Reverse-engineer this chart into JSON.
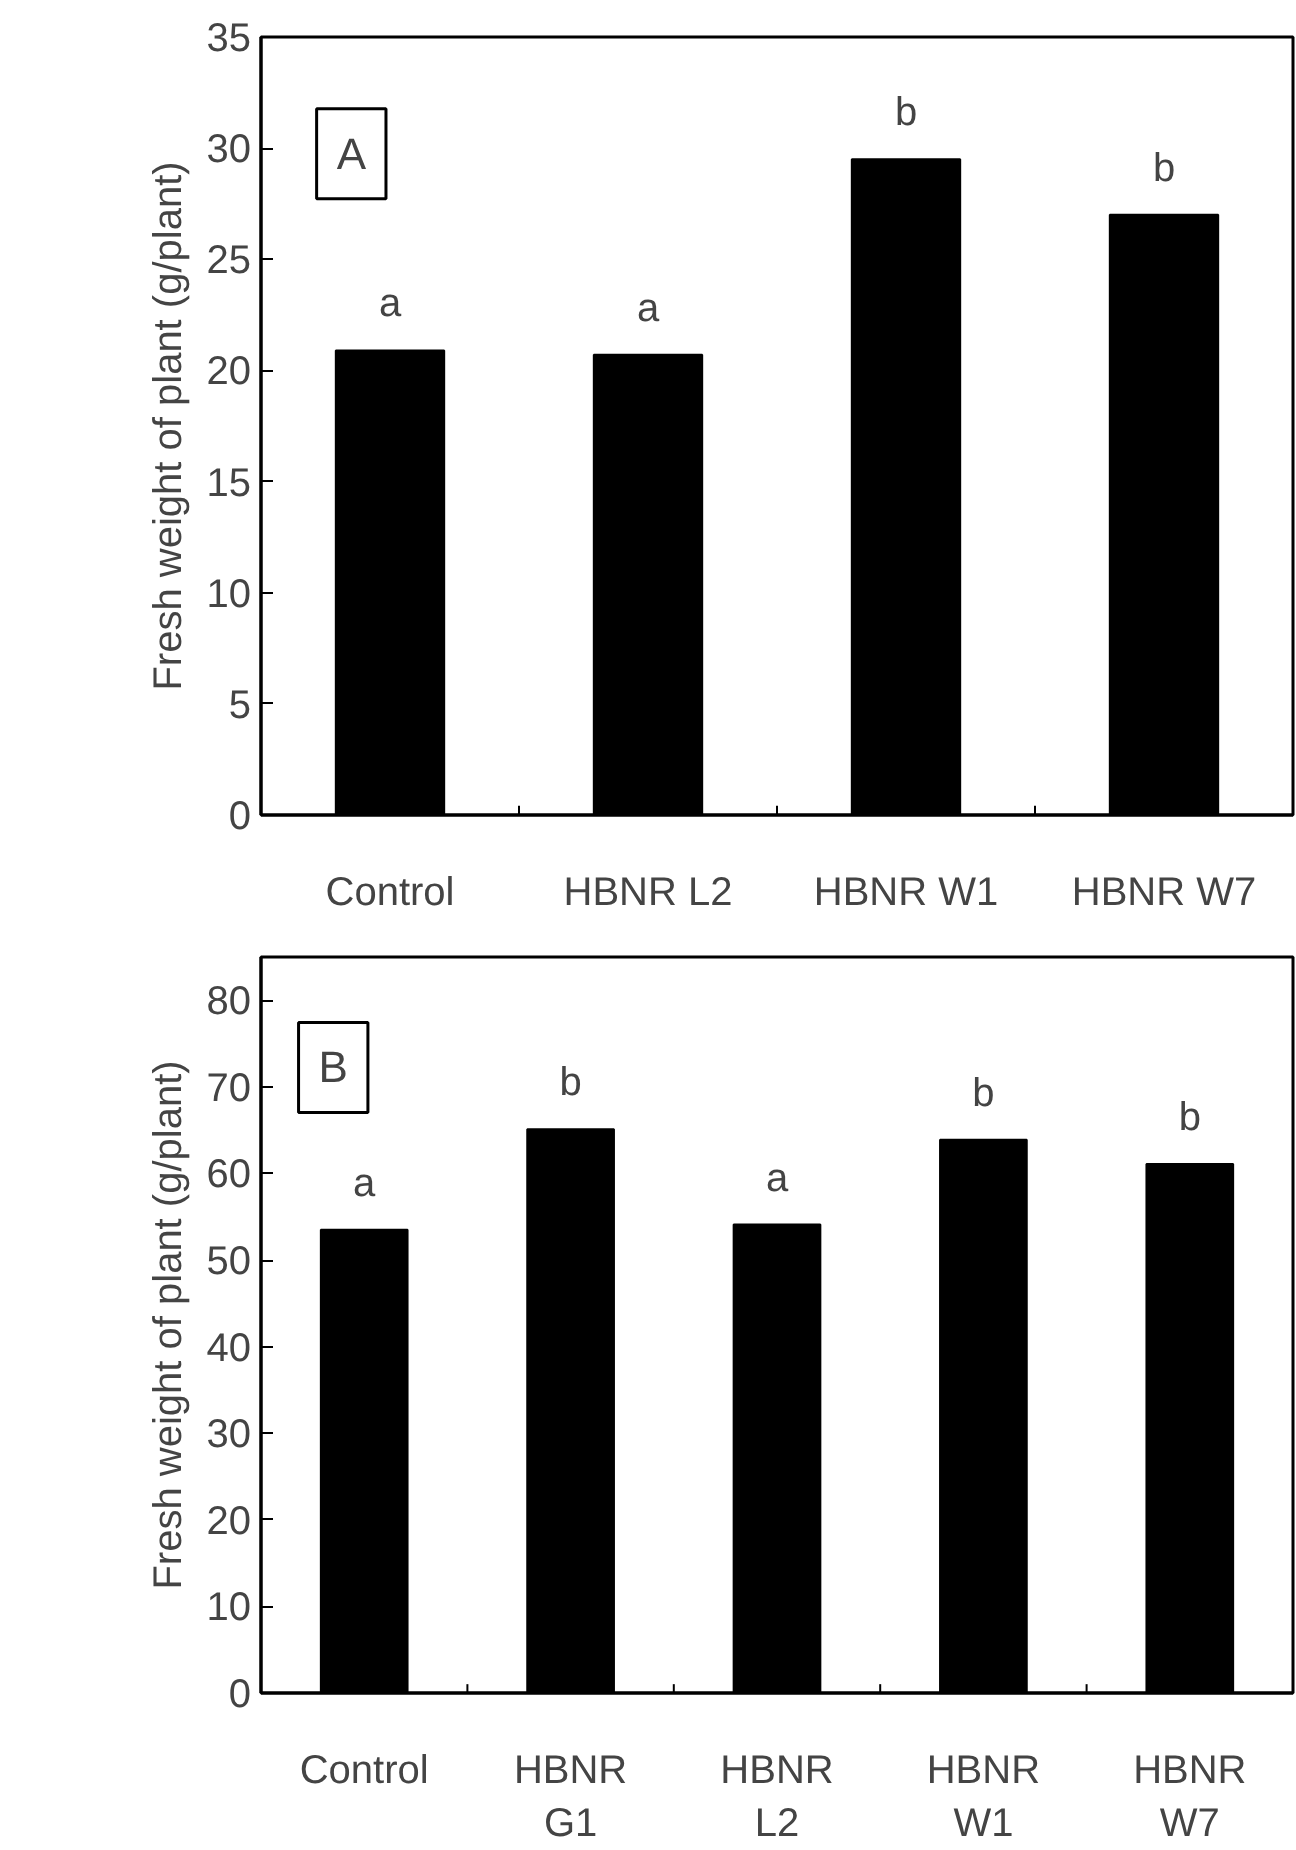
{
  "chart_data": [
    {
      "type": "bar",
      "ylabel": "Fresh weight of plant (g/plant)",
      "categories": [
        "Control",
        "HBNR L2",
        "HBNR W1",
        "HBNR W7"
      ],
      "values": [
        20.9,
        20.7,
        29.5,
        27.0
      ],
      "color": "#000000",
      "ylim": [
        0,
        35
      ],
      "yticks": [
        0,
        5,
        10,
        15,
        20,
        25,
        30,
        35
      ],
      "annotations": [
        "A",
        {
          "text": "a",
          "x": "Control",
          "y": 20.9
        },
        {
          "text": "a",
          "x": "HBNR L2",
          "y": 20.7
        },
        {
          "text": "b",
          "x": "HBNR W1",
          "y": 29.5
        },
        {
          "text": "b",
          "x": "HBNR W7",
          "y": 27.0
        }
      ]
    },
    {
      "type": "bar",
      "ylabel": "Fresh weight of plant (g/plant)",
      "categories": [
        "Control",
        "HBNR\nG1",
        "HBNR\nL2",
        "HBNR\nW1",
        "HBNR\nW7"
      ],
      "values": [
        53.5,
        65.1,
        54.1,
        63.9,
        61.1
      ],
      "color": "#000000",
      "ylim": [
        0,
        85
      ],
      "yticks": [
        0,
        10,
        20,
        30,
        40,
        50,
        60,
        70,
        80
      ],
      "annotations": [
        "B",
        {
          "text": "a",
          "x": "Control",
          "y": 53.5
        },
        {
          "text": "b",
          "x": "HBNR\nG1",
          "y": 65.1
        },
        {
          "text": "a",
          "x": "HBNR\nL2",
          "y": 54.1
        },
        {
          "text": "b",
          "x": "HBNR\nW1",
          "y": 63.9
        },
        {
          "text": "b",
          "x": "HBNR\nW7",
          "y": 61.1
        }
      ]
    }
  ]
}
